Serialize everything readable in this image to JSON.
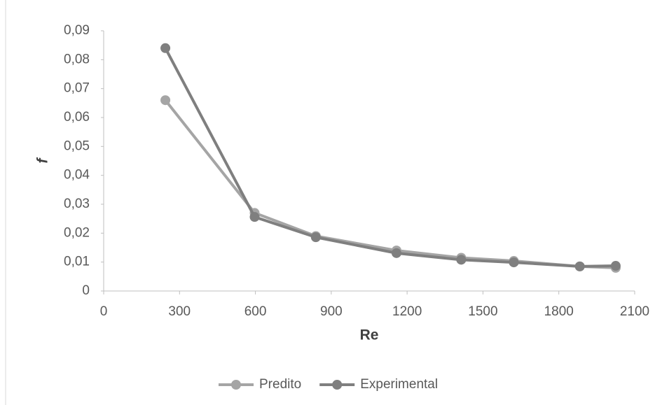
{
  "chart_data": {
    "type": "line",
    "x_label": "Re",
    "y_label": "f",
    "x": [
      244,
      597,
      839,
      1158,
      1414,
      1622,
      1883,
      2025
    ],
    "series": [
      {
        "name": "Predito",
        "color": "#a5a5a5",
        "values": [
          0.066,
          0.027,
          0.019,
          0.014,
          0.0115,
          0.0104,
          0.0085,
          0.008
        ]
      },
      {
        "name": "Experimental",
        "color": "#7f7f7f",
        "values": [
          0.084,
          0.0256,
          0.0186,
          0.0131,
          0.0108,
          0.0099,
          0.0085,
          0.0087
        ]
      }
    ],
    "xlim": [
      0,
      2100
    ],
    "xticks": [
      0,
      300,
      600,
      900,
      1200,
      1500,
      1800,
      2100
    ],
    "ylim": [
      0,
      0.09
    ],
    "yticks": [
      0,
      {
        "value": 0.01,
        "label": "0,01"
      },
      {
        "value": 0.02,
        "label": "0,02"
      },
      {
        "value": 0.03,
        "label": "0,03"
      },
      {
        "value": 0.04,
        "label": "0,04"
      },
      {
        "value": 0.05,
        "label": "0,05"
      },
      {
        "value": 0.06,
        "label": "0,06"
      },
      {
        "value": 0.07,
        "label": "0,07"
      },
      {
        "value": 0.08,
        "label": "0,08"
      },
      {
        "value": 0.09,
        "label": "0,09"
      }
    ],
    "grid": false,
    "legend": "bottom"
  }
}
